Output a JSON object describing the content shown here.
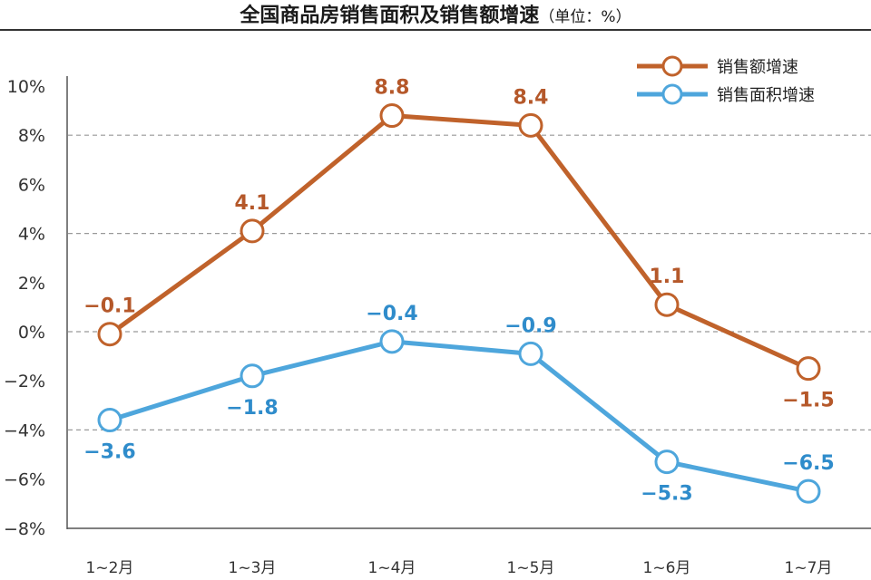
{
  "chart_data": {
    "type": "line",
    "title": "全国商品房销售面积及销售额增速",
    "title_unit": "（单位：%）",
    "categories": [
      "1~2月",
      "1~3月",
      "1~4月",
      "1~5月",
      "1~6月",
      "1~7月"
    ],
    "series": [
      {
        "name": "销售额增速",
        "values": [
          -0.1,
          4.1,
          8.8,
          8.4,
          1.1,
          -1.5
        ],
        "labels": [
          "−0.1",
          "4.1",
          "8.8",
          "8.4",
          "1.1",
          "−1.5"
        ],
        "color": "#C0622B",
        "label_color": "#B5582A"
      },
      {
        "name": "销售面积增速",
        "values": [
          -3.6,
          -1.8,
          -0.4,
          -0.9,
          -5.3,
          -6.5
        ],
        "labels": [
          "−3.6",
          "−1.8",
          "−0.4",
          "−0.9",
          "−5.3",
          "−6.5"
        ],
        "color": "#4EA6DC",
        "label_color": "#2F8CCB"
      }
    ],
    "yticks": [
      10,
      8,
      6,
      4,
      2,
      0,
      -2,
      -4,
      -6,
      -8
    ],
    "ytick_labels": [
      "10%",
      "8%",
      "6%",
      "4%",
      "2%",
      "0%",
      "−2%",
      "−4%",
      "−6%",
      "−8%"
    ],
    "ylim": [
      -8,
      10
    ],
    "gridlines_at": [
      8,
      4,
      0,
      -4
    ],
    "grid": "dashed",
    "legend_position": "top-right"
  }
}
